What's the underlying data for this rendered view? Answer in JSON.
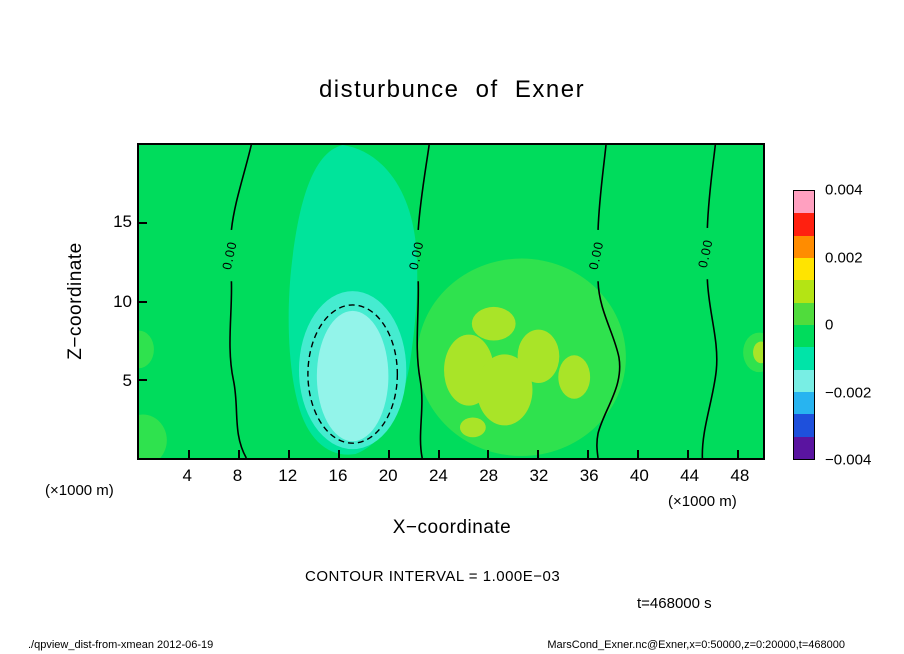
{
  "title": "disturbunce of Exner",
  "axes": {
    "x": {
      "label": "X−coordinate",
      "unit": "(×1000 m)",
      "ticks": [
        4,
        8,
        12,
        16,
        20,
        24,
        28,
        32,
        36,
        40,
        44,
        48
      ],
      "range": [
        0,
        50
      ]
    },
    "y": {
      "label": "Z−coordinate",
      "unit": "(×1000 m)",
      "ticks": [
        5,
        10,
        15
      ],
      "range": [
        0,
        20
      ]
    }
  },
  "colorbar": {
    "labels": [
      "0.004",
      "0.002",
      "0",
      "−0.002",
      "−0.004"
    ],
    "colors": [
      "#ffa0c0",
      "#ff2010",
      "#ff8c00",
      "#ffe400",
      "#b4e414",
      "#50dc3c",
      "#00dc5c",
      "#00e4a8",
      "#78eee4",
      "#28b4f0",
      "#1e50dc",
      "#5a14a0"
    ]
  },
  "contour": {
    "interval_text": "CONTOUR INTERVAL = 1.000E−03",
    "zero_label": "0.00"
  },
  "annotations": {
    "time": "t=468000 s"
  },
  "footer": {
    "left": "./qpview_dist-from-xmean  2012-06-19",
    "right": "MarsCond_Exner.nc@Exner,x=0:50000,z=0:20000,t=468000"
  },
  "chart_data": {
    "type": "heatmap",
    "title": "disturbunce of Exner",
    "xlabel": "X−coordinate (×1000 m)",
    "ylabel": "Z−coordinate (×1000 m)",
    "xlim": [
      0,
      50
    ],
    "ylim": [
      0,
      20
    ],
    "x_ticks": [
      4,
      8,
      12,
      16,
      20,
      24,
      28,
      32,
      36,
      40,
      44,
      48
    ],
    "y_ticks": [
      5,
      10,
      15
    ],
    "contour_interval": 0.001,
    "colorbar_range": [
      -0.004,
      0.004
    ],
    "colorbar_tick_labels": [
      "0.004",
      "0.002",
      "0",
      "−0.002",
      "−0.004"
    ],
    "zero_contour_x_positions": [
      7.5,
      22.5,
      37,
      46
    ],
    "features": [
      {
        "name": "negative-anomaly",
        "x_center": 17,
        "z_center": 6,
        "x_extent": [
          12,
          21
        ],
        "z_extent": [
          0,
          10
        ],
        "min_value": -0.002,
        "dashed_contour_value": -0.001
      },
      {
        "name": "weak-negative-column-top",
        "x_center": 17,
        "z_center": 14,
        "value": -0.0005
      },
      {
        "name": "positive-patch",
        "x_center": 29,
        "z_center": 6,
        "x_extent": [
          24,
          36
        ],
        "z_extent": [
          2,
          9
        ],
        "max_value": 0.001
      },
      {
        "name": "small-positive-right-edge",
        "x_center": 48.5,
        "z_center": 6.5,
        "value": 0.0005
      },
      {
        "name": "weak-patch-left-edge-bottom",
        "x_center": 0.5,
        "z_center": 1,
        "value": -0.0005
      },
      {
        "name": "weak-patch-left-edge-mid",
        "x_center": 0.3,
        "z_center": 7,
        "value": -0.0005
      }
    ],
    "legend_position": "right-colorbar",
    "grid": false,
    "time_annotation": "t=468000 s"
  }
}
